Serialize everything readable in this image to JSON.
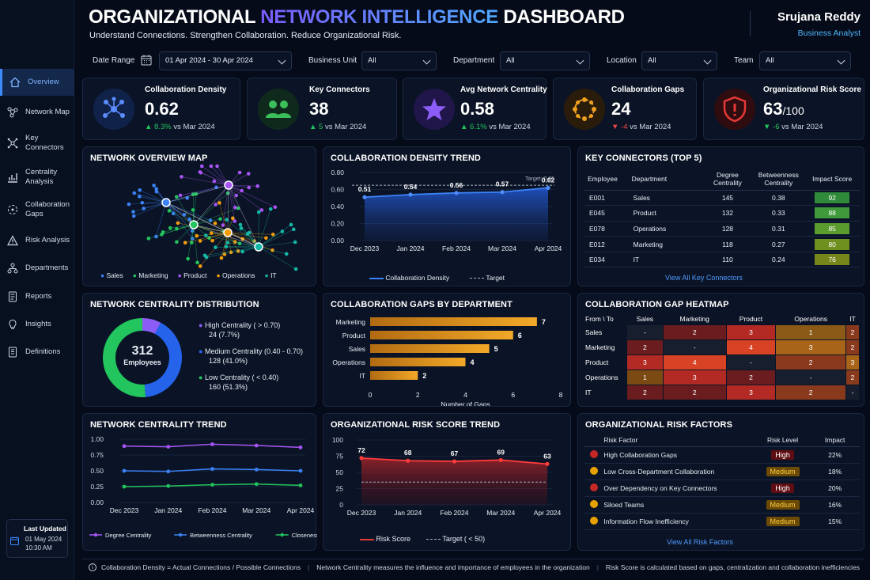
{
  "header": {
    "title_a": "ORGANIZATIONAL",
    "title_b": "NETWORK INTELLIGENCE",
    "title_c": "DASHBOARD",
    "subtitle": "Understand Connections. Strengthen Collaboration. Reduce Organizational Risk.",
    "user_name": "Srujana Reddy",
    "user_role": "Business Analyst"
  },
  "filters": {
    "date_label": "Date Range",
    "date_value": "01 Apr 2024 - 30 Apr 2024",
    "bu_label": "Business Unit",
    "bu_value": "All",
    "dept_label": "Department",
    "dept_value": "All",
    "loc_label": "Location",
    "loc_value": "All",
    "team_label": "Team",
    "team_value": "All"
  },
  "sidebar": {
    "items": [
      {
        "label": "Overview"
      },
      {
        "label": "Network Map"
      },
      {
        "label": "Key Connectors"
      },
      {
        "label": "Centrality Analysis"
      },
      {
        "label": "Collaboration Gaps"
      },
      {
        "label": "Risk Analysis"
      },
      {
        "label": "Departments"
      },
      {
        "label": "Reports"
      },
      {
        "label": "Insights"
      },
      {
        "label": "Definitions"
      }
    ],
    "last_updated_label": "Last Updated",
    "last_updated_date": "01 May 2024",
    "last_updated_time": "10:30 AM"
  },
  "kpis": [
    {
      "title": "Collaboration Density",
      "value": "0.62",
      "suffix": "",
      "delta": "8.3%",
      "vs": "vs Mar 2024",
      "dir": "up",
      "color": "#3d7bff"
    },
    {
      "title": "Key Connectors",
      "value": "38",
      "suffix": "",
      "delta": "5",
      "vs": "vs Mar 2024",
      "dir": "up",
      "color": "#3bbf5a"
    },
    {
      "title": "Avg Network Centrality",
      "value": "0.58",
      "suffix": "",
      "delta": "6.1%",
      "vs": "vs Mar 2024",
      "dir": "up",
      "color": "#8b5cf6"
    },
    {
      "title": "Collaboration Gaps",
      "value": "24",
      "suffix": "",
      "delta": "-4",
      "vs": "vs Mar 2024",
      "dir": "down-red",
      "color": "#f0a020"
    },
    {
      "title": "Organizational Risk Score",
      "value": "63",
      "suffix": "/100",
      "delta": "-6",
      "vs": "vs Mar 2024",
      "dir": "down-green",
      "color": "#e53935"
    }
  ],
  "network_map": {
    "title": "NETWORK OVERVIEW MAP",
    "legend": [
      {
        "name": "Sales",
        "color": "#3b82f6"
      },
      {
        "name": "Marketing",
        "color": "#22c55e"
      },
      {
        "name": "Product",
        "color": "#a855f7"
      },
      {
        "name": "Operations",
        "color": "#f59e0b"
      },
      {
        "name": "IT",
        "color": "#14b8a6"
      }
    ]
  },
  "density_trend": {
    "title": "COLLABORATION DENSITY TREND",
    "target_label": "Target: 0.65",
    "legend_a": "Collaboration Density",
    "legend_b": "Target"
  },
  "key_connectors": {
    "title": "KEY CONNECTORS (TOP 5)",
    "headers": [
      "Employee",
      "Department",
      "Degree Centrality",
      "Betweenness Centrality",
      "Impact Score"
    ],
    "rows": [
      [
        "E001",
        "Sales",
        "145",
        "0.38",
        "92"
      ],
      [
        "E045",
        "Product",
        "132",
        "0.33",
        "88"
      ],
      [
        "E078",
        "Operations",
        "128",
        "0.31",
        "85"
      ],
      [
        "E012",
        "Marketing",
        "118",
        "0.27",
        "80"
      ],
      [
        "E034",
        "IT",
        "110",
        "0.24",
        "76"
      ]
    ],
    "link": "View All Key Connectors"
  },
  "centrality_dist": {
    "title": "NETWORK CENTRALITY DISTRIBUTION",
    "center_value": "312",
    "center_label": "Employees",
    "items": [
      {
        "label": "High Centrality ( > 0.70)",
        "value": "24 (7.7%)",
        "color": "#8b5cf6"
      },
      {
        "label": "Medium Centrality (0.40 - 0.70)",
        "value": "128 (41.0%)",
        "color": "#2563eb"
      },
      {
        "label": "Low Centrality ( < 0.40)",
        "value": "160 (51.3%)",
        "color": "#22c55e"
      }
    ]
  },
  "gaps_by_dept": {
    "title": "COLLABORATION GAPS BY DEPARTMENT"
  },
  "heatmap": {
    "title": "COLLABORATION GAP HEATMAP",
    "corner": "From \\ To",
    "cols": [
      "Sales",
      "Marketing",
      "Product",
      "Operations",
      "IT"
    ],
    "rows": [
      {
        "name": "Sales",
        "cells": [
          "-",
          "2",
          "3",
          "1",
          "2"
        ]
      },
      {
        "name": "Marketing",
        "cells": [
          "2",
          "-",
          "4",
          "3",
          "2"
        ]
      },
      {
        "name": "Product",
        "cells": [
          "3",
          "4",
          "-",
          "2",
          "3"
        ]
      },
      {
        "name": "Operations",
        "cells": [
          "1",
          "3",
          "2",
          "-",
          "2"
        ]
      },
      {
        "name": "IT",
        "cells": [
          "2",
          "2",
          "3",
          "2",
          "-"
        ]
      }
    ]
  },
  "centrality_trend": {
    "title": "NETWORK CENTRALITY TREND"
  },
  "risk_trend": {
    "title": "ORGANIZATIONAL RISK SCORE TREND",
    "legend_a": "Risk Score",
    "legend_b": "Target ( < 50)"
  },
  "risk_factors": {
    "title": "ORGANIZATIONAL RISK FACTORS",
    "headers": [
      "Risk Factor",
      "Risk Level",
      "Impact"
    ],
    "rows": [
      {
        "factor": "High Collaboration Gaps",
        "level": "High",
        "impact": "22%"
      },
      {
        "factor": "Low Cross-Department Collaboration",
        "level": "Medium",
        "impact": "18%"
      },
      {
        "factor": "Over Dependency on Key Connectors",
        "level": "High",
        "impact": "20%"
      },
      {
        "factor": "Siloed Teams",
        "level": "Medium",
        "impact": "16%"
      },
      {
        "factor": "Information Flow Inefficiency",
        "level": "Medium",
        "impact": "15%"
      }
    ],
    "link": "View All Risk Factors"
  },
  "footer": {
    "note1": "Collaboration Density = Actual Connections / Possible Connections",
    "note2": "Network Centrality measures the influence and importance of employees in the organization",
    "note3": "Risk Score is calculated based on gaps, centralization and collaboration inefficiencies"
  },
  "chart_data": [
    {
      "type": "area",
      "title": "COLLABORATION DENSITY TREND",
      "categories": [
        "Dec 2023",
        "Jan 2024",
        "Feb 2024",
        "Mar 2024",
        "Apr 2024"
      ],
      "series": [
        {
          "name": "Collaboration Density",
          "values": [
            0.51,
            0.54,
            0.56,
            0.57,
            0.62
          ]
        },
        {
          "name": "Target",
          "values": [
            0.65,
            0.65,
            0.65,
            0.65,
            0.65
          ]
        }
      ],
      "ylim": [
        0,
        0.8
      ],
      "yticks": [
        "0.00",
        "0.20",
        "0.40",
        "0.60",
        "0.80"
      ]
    },
    {
      "type": "pie",
      "title": "NETWORK CENTRALITY DISTRIBUTION",
      "categories": [
        "High Centrality ( > 0.70)",
        "Medium Centrality (0.40 - 0.70)",
        "Low Centrality ( < 0.40)"
      ],
      "values": [
        24,
        128,
        160
      ]
    },
    {
      "type": "bar",
      "title": "COLLABORATION GAPS BY DEPARTMENT",
      "categories": [
        "Marketing",
        "Product",
        "Sales",
        "Operations",
        "IT"
      ],
      "values": [
        7,
        6,
        5,
        4,
        2
      ],
      "xlabel": "Number of Gaps",
      "xlim": [
        0,
        8
      ],
      "xticks": [
        "0",
        "2",
        "4",
        "6",
        "8"
      ]
    },
    {
      "type": "heatmap",
      "title": "COLLABORATION GAP HEATMAP",
      "x": [
        "Sales",
        "Marketing",
        "Product",
        "Operations",
        "IT"
      ],
      "y": [
        "Sales",
        "Marketing",
        "Product",
        "Operations",
        "IT"
      ],
      "values": [
        [
          null,
          2,
          3,
          1,
          2
        ],
        [
          2,
          null,
          4,
          3,
          2
        ],
        [
          3,
          4,
          null,
          2,
          3
        ],
        [
          1,
          3,
          2,
          null,
          2
        ],
        [
          2,
          2,
          3,
          2,
          null
        ]
      ]
    },
    {
      "type": "line",
      "title": "NETWORK CENTRALITY TREND",
      "categories": [
        "Dec 2023",
        "Jan 2024",
        "Feb 2024",
        "Mar 2024",
        "Apr 2024"
      ],
      "series": [
        {
          "name": "Degree Centrality",
          "values": [
            0.89,
            0.88,
            0.92,
            0.9,
            0.87
          ],
          "color": "#a855f7"
        },
        {
          "name": "Betweenness Centrality",
          "values": [
            0.5,
            0.49,
            0.53,
            0.52,
            0.5
          ],
          "color": "#3b82f6"
        },
        {
          "name": "Closeness Centrality",
          "values": [
            0.25,
            0.26,
            0.28,
            0.29,
            0.27
          ],
          "color": "#22c55e"
        }
      ],
      "ylim": [
        0,
        1
      ],
      "yticks": [
        "0.00",
        "0.25",
        "0.50",
        "0.75",
        "1.00"
      ]
    },
    {
      "type": "area",
      "title": "ORGANIZATIONAL RISK SCORE TREND",
      "categories": [
        "Dec 2023",
        "Jan 2024",
        "Feb 2024",
        "Mar 2024",
        "Apr 2024"
      ],
      "series": [
        {
          "name": "Risk Score",
          "values": [
            72,
            68,
            67,
            69,
            63
          ]
        },
        {
          "name": "Target ( < 50)",
          "values": [
            35,
            35,
            35,
            35,
            35
          ]
        }
      ],
      "ylim": [
        0,
        100
      ],
      "yticks": [
        "0",
        "25",
        "50",
        "75",
        "100"
      ]
    }
  ]
}
